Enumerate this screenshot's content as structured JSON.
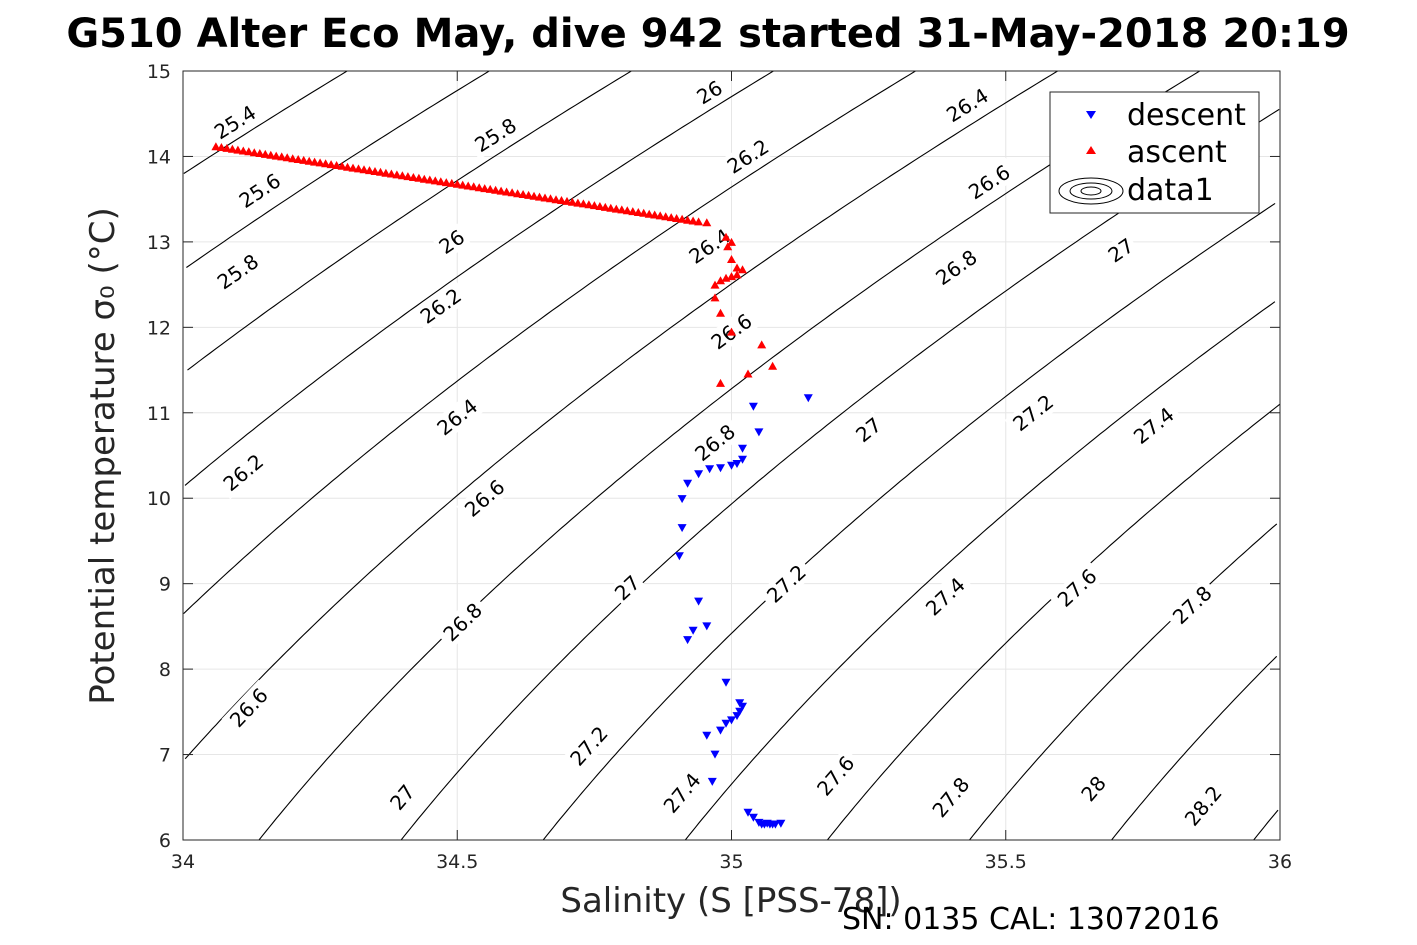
{
  "chart_data": {
    "type": "scatter",
    "title": "G510 Alter Eco May, dive 942 started 31-May-2018 20:19",
    "xlabel": "Salinity (S [PSS-78])",
    "ylabel": "Potential temperature σ₀ (°C)",
    "footer": "SN: 0135  CAL: 13072016",
    "xlim": [
      34,
      36
    ],
    "ylim": [
      6,
      15
    ],
    "xticks": [
      "34",
      "34.5",
      "35",
      "35.5",
      "36"
    ],
    "yticks": [
      "6",
      "7",
      "8",
      "9",
      "10",
      "11",
      "12",
      "13",
      "14",
      "15"
    ],
    "grid": true,
    "legend_position": "top-right",
    "legend": [
      "descent",
      "ascent",
      "data1"
    ],
    "colors": {
      "descent": "#0000ff",
      "ascent": "#ff0000",
      "contours": "#000000"
    },
    "contour_levels": [
      25.4,
      25.6,
      25.8,
      26.0,
      26.2,
      26.4,
      26.6,
      26.8,
      27.0,
      27.2,
      27.4,
      27.6,
      27.8,
      28.0,
      28.2
    ],
    "contour_labels": [
      {
        "text": "25.4",
        "s": 34.095,
        "t": 14.4
      },
      {
        "text": "25.8",
        "s": 34.57,
        "t": 14.25
      },
      {
        "text": "26",
        "s": 34.96,
        "t": 14.75
      },
      {
        "text": "26.2",
        "s": 35.03,
        "t": 14.0
      },
      {
        "text": "26.4",
        "s": 35.43,
        "t": 14.6
      },
      {
        "text": "25.6",
        "s": 34.14,
        "t": 13.6
      },
      {
        "text": "26.6",
        "s": 35.47,
        "t": 13.7
      },
      {
        "text": "26",
        "s": 34.49,
        "t": 13.0
      },
      {
        "text": "25.8",
        "s": 34.1,
        "t": 12.65
      },
      {
        "text": "26.4",
        "s": 34.96,
        "t": 12.95
      },
      {
        "text": "26.2",
        "s": 34.47,
        "t": 12.25
      },
      {
        "text": "26.8",
        "s": 35.41,
        "t": 12.7
      },
      {
        "text": "27",
        "s": 35.71,
        "t": 12.9
      },
      {
        "text": "26.6",
        "s": 35.0,
        "t": 11.95
      },
      {
        "text": "26.4",
        "s": 34.5,
        "t": 10.95
      },
      {
        "text": "27",
        "s": 35.25,
        "t": 10.8
      },
      {
        "text": "27.2",
        "s": 35.55,
        "t": 11.0
      },
      {
        "text": "27.4",
        "s": 35.77,
        "t": 10.85
      },
      {
        "text": "26.8",
        "s": 34.97,
        "t": 10.65
      },
      {
        "text": "26.2",
        "s": 34.11,
        "t": 10.3
      },
      {
        "text": "26.6",
        "s": 34.55,
        "t": 10.0
      },
      {
        "text": "27.2",
        "s": 35.1,
        "t": 9.0
      },
      {
        "text": "27",
        "s": 34.81,
        "t": 8.95
      },
      {
        "text": "27.4",
        "s": 35.39,
        "t": 8.85
      },
      {
        "text": "27.6",
        "s": 35.63,
        "t": 8.95
      },
      {
        "text": "27.8",
        "s": 35.84,
        "t": 8.75
      },
      {
        "text": "26.8",
        "s": 34.51,
        "t": 8.55
      },
      {
        "text": "26.6",
        "s": 34.12,
        "t": 7.55
      },
      {
        "text": "27.2",
        "s": 34.74,
        "t": 7.1
      },
      {
        "text": "27.4",
        "s": 34.91,
        "t": 6.55
      },
      {
        "text": "27.6",
        "s": 35.19,
        "t": 6.75
      },
      {
        "text": "27",
        "s": 34.4,
        "t": 6.5
      },
      {
        "text": "27.8",
        "s": 35.4,
        "t": 6.5
      },
      {
        "text": "28",
        "s": 35.66,
        "t": 6.6
      },
      {
        "text": "28.2",
        "s": 35.86,
        "t": 6.4
      }
    ],
    "series": [
      {
        "name": "ascent",
        "marker": "triangle-up",
        "points": [
          [
            34.06,
            14.12
          ],
          [
            34.07,
            14.11
          ],
          [
            34.08,
            14.1
          ],
          [
            34.09,
            14.09
          ],
          [
            34.1,
            14.08
          ],
          [
            34.11,
            14.07
          ],
          [
            34.12,
            14.06
          ],
          [
            34.13,
            14.05
          ],
          [
            34.14,
            14.04
          ],
          [
            34.15,
            14.03
          ],
          [
            34.16,
            14.02
          ],
          [
            34.17,
            14.01
          ],
          [
            34.18,
            14.0
          ],
          [
            34.19,
            13.99
          ],
          [
            34.2,
            13.98
          ],
          [
            34.21,
            13.97
          ],
          [
            34.22,
            13.96
          ],
          [
            34.23,
            13.95
          ],
          [
            34.24,
            13.94
          ],
          [
            34.25,
            13.93
          ],
          [
            34.26,
            13.92
          ],
          [
            34.27,
            13.91
          ],
          [
            34.28,
            13.9
          ],
          [
            34.29,
            13.89
          ],
          [
            34.3,
            13.88
          ],
          [
            34.31,
            13.87
          ],
          [
            34.32,
            13.86
          ],
          [
            34.33,
            13.85
          ],
          [
            34.34,
            13.84
          ],
          [
            34.35,
            13.83
          ],
          [
            34.36,
            13.82
          ],
          [
            34.37,
            13.81
          ],
          [
            34.38,
            13.8
          ],
          [
            34.39,
            13.79
          ],
          [
            34.4,
            13.78
          ],
          [
            34.41,
            13.77
          ],
          [
            34.42,
            13.76
          ],
          [
            34.43,
            13.75
          ],
          [
            34.44,
            13.74
          ],
          [
            34.45,
            13.73
          ],
          [
            34.46,
            13.72
          ],
          [
            34.47,
            13.71
          ],
          [
            34.48,
            13.7
          ],
          [
            34.49,
            13.69
          ],
          [
            34.5,
            13.68
          ],
          [
            34.51,
            13.67
          ],
          [
            34.52,
            13.66
          ],
          [
            34.53,
            13.65
          ],
          [
            34.54,
            13.64
          ],
          [
            34.55,
            13.63
          ],
          [
            34.56,
            13.62
          ],
          [
            34.57,
            13.61
          ],
          [
            34.58,
            13.6
          ],
          [
            34.59,
            13.59
          ],
          [
            34.6,
            13.58
          ],
          [
            34.61,
            13.57
          ],
          [
            34.62,
            13.56
          ],
          [
            34.63,
            13.55
          ],
          [
            34.64,
            13.54
          ],
          [
            34.65,
            13.53
          ],
          [
            34.66,
            13.52
          ],
          [
            34.67,
            13.51
          ],
          [
            34.68,
            13.5
          ],
          [
            34.69,
            13.49
          ],
          [
            34.7,
            13.48
          ],
          [
            34.71,
            13.47
          ],
          [
            34.72,
            13.46
          ],
          [
            34.73,
            13.45
          ],
          [
            34.74,
            13.44
          ],
          [
            34.75,
            13.43
          ],
          [
            34.76,
            13.42
          ],
          [
            34.77,
            13.41
          ],
          [
            34.78,
            13.4
          ],
          [
            34.79,
            13.39
          ],
          [
            34.8,
            13.38
          ],
          [
            34.81,
            13.37
          ],
          [
            34.82,
            13.36
          ],
          [
            34.83,
            13.35
          ],
          [
            34.84,
            13.34
          ],
          [
            34.85,
            13.33
          ],
          [
            34.86,
            13.32
          ],
          [
            34.87,
            13.31
          ],
          [
            34.88,
            13.3
          ],
          [
            34.89,
            13.29
          ],
          [
            34.9,
            13.28
          ],
          [
            34.91,
            13.27
          ],
          [
            34.92,
            13.26
          ],
          [
            34.93,
            13.25
          ],
          [
            34.94,
            13.24
          ],
          [
            34.955,
            13.23
          ],
          [
            34.99,
            13.06
          ],
          [
            35.0,
            13.0
          ],
          [
            34.993,
            12.95
          ],
          [
            35.0,
            12.8
          ],
          [
            35.01,
            12.7
          ],
          [
            35.02,
            12.68
          ],
          [
            35.01,
            12.62
          ],
          [
            35.0,
            12.6
          ],
          [
            34.99,
            12.58
          ],
          [
            34.98,
            12.55
          ],
          [
            34.97,
            12.5
          ],
          [
            34.97,
            12.35
          ],
          [
            34.98,
            12.17
          ],
          [
            35.0,
            11.95
          ],
          [
            35.055,
            11.8
          ],
          [
            35.075,
            11.55
          ],
          [
            35.03,
            11.46
          ],
          [
            34.98,
            11.35
          ]
        ]
      },
      {
        "name": "descent",
        "marker": "triangle-down",
        "points": [
          [
            35.14,
            11.17
          ],
          [
            35.04,
            11.07
          ],
          [
            35.05,
            10.77
          ],
          [
            35.02,
            10.58
          ],
          [
            35.02,
            10.45
          ],
          [
            35.01,
            10.4
          ],
          [
            35.0,
            10.38
          ],
          [
            34.98,
            10.35
          ],
          [
            34.96,
            10.34
          ],
          [
            34.94,
            10.28
          ],
          [
            34.92,
            10.17
          ],
          [
            34.91,
            9.99
          ],
          [
            34.91,
            9.65
          ],
          [
            34.905,
            9.32
          ],
          [
            34.94,
            8.79
          ],
          [
            34.955,
            8.5
          ],
          [
            34.93,
            8.45
          ],
          [
            34.92,
            8.34
          ],
          [
            34.99,
            7.84
          ],
          [
            35.015,
            7.6
          ],
          [
            35.02,
            7.56
          ],
          [
            35.015,
            7.5
          ],
          [
            35.01,
            7.45
          ],
          [
            35.0,
            7.4
          ],
          [
            34.99,
            7.36
          ],
          [
            34.98,
            7.28
          ],
          [
            34.955,
            7.22
          ],
          [
            34.97,
            7.0
          ],
          [
            34.965,
            6.68
          ],
          [
            35.03,
            6.32
          ],
          [
            35.04,
            6.26
          ],
          [
            35.05,
            6.2
          ],
          [
            35.06,
            6.18
          ],
          [
            35.07,
            6.18
          ],
          [
            35.08,
            6.18
          ],
          [
            35.09,
            6.19
          ],
          [
            35.055,
            6.18
          ],
          [
            35.065,
            6.19
          ],
          [
            35.075,
            6.18
          ]
        ]
      }
    ]
  }
}
